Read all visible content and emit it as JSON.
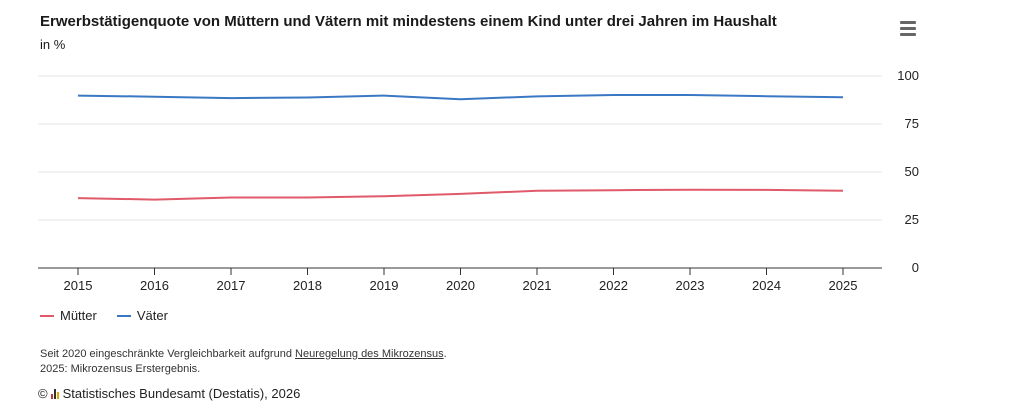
{
  "title": "Erwerbstätigenquote von Müttern und Vätern mit mindestens einem Kind unter drei Jahren im Haushalt",
  "subtitle": "in %",
  "menu_icon": "hamburger-menu-icon",
  "chart_data": {
    "type": "line",
    "x": [
      "2015",
      "2016",
      "2017",
      "2018",
      "2019",
      "2020",
      "2021",
      "2022",
      "2023",
      "2024",
      "2025"
    ],
    "series": [
      {
        "name": "Mütter",
        "color": "#e05a6a",
        "values": [
          36.4,
          35.6,
          36.7,
          36.7,
          37.4,
          38.6,
          40.2,
          40.5,
          40.8,
          40.7,
          40.2
        ]
      },
      {
        "name": "Väter",
        "color": "#3a78c4",
        "values": [
          89.8,
          89.2,
          88.5,
          88.8,
          89.8,
          87.9,
          89.4,
          90.1,
          90.1,
          89.5,
          88.9
        ]
      }
    ],
    "yticks": [
      0,
      25,
      50,
      75,
      100
    ],
    "ylim": [
      0,
      100
    ],
    "grid": true,
    "legend_position": "bottom-left"
  },
  "notes": {
    "line1_prefix": "Seit 2020 eingeschränkte Vergleichbarkeit aufgrund ",
    "line1_link": "Neuregelung des Mikrozensus",
    "line1_suffix": ".",
    "line2": "2025: Mikrozensus Erstergebnis."
  },
  "credit": {
    "copyright": "©",
    "text": "Statistisches Bundesamt (Destatis), 2026"
  }
}
